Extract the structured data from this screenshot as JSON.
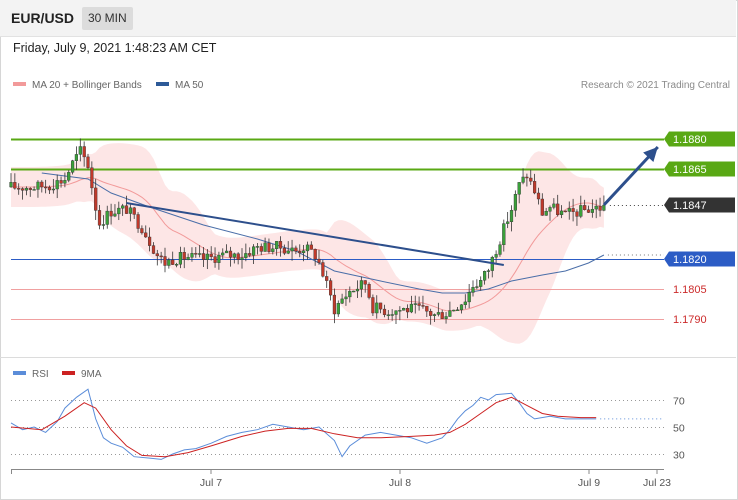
{
  "header": {
    "symbol": "EUR/USD",
    "interval": "30 MIN",
    "datetime": "Friday, July 9, 2021 1:48:23 AM CET"
  },
  "legend": {
    "ma20": "MA 20 + Bollinger Bands",
    "ma50": "MA 50",
    "credit": "Research © 2021 Trading Central"
  },
  "rsi_legend": {
    "rsi": "RSI",
    "ma": "9MA"
  },
  "colors": {
    "resistance": "#59a814",
    "support_main": "#2c5cc5",
    "support": "#cc2b2b",
    "last": "#333333",
    "bollinger": "#fde6e6",
    "ma20": "#f29a9a",
    "ma50": "#4a6ea8",
    "trend": "#2d4f8c",
    "bull": "#3aa03a",
    "bear": "#c0392b",
    "rsi": "#5b8dd9",
    "rsi_ma": "#cc2222"
  },
  "chart_data": [
    {
      "type": "candlestick",
      "title": "EUR/USD 30 MIN",
      "x_ticks": [
        "Jul 7",
        "Jul 8",
        "Jul 9",
        "Jul 23"
      ],
      "y_levels": [
        {
          "value": 1.188,
          "label": "1.1880",
          "kind": "resistance"
        },
        {
          "value": 1.1865,
          "label": "1.1865",
          "kind": "resistance"
        },
        {
          "value": 1.1847,
          "label": "1.1847",
          "kind": "last"
        },
        {
          "value": 1.182,
          "label": "1.1820",
          "kind": "pivot"
        },
        {
          "value": 1.1805,
          "label": "1.1805",
          "kind": "support"
        },
        {
          "value": 1.179,
          "label": "1.1790",
          "kind": "support"
        }
      ],
      "ylim": [
        1.177,
        1.1895
      ],
      "close_path": [
        [
          0,
          1.1856
        ],
        [
          6,
          1.1856
        ],
        [
          10,
          1.1857
        ],
        [
          14,
          1.186
        ],
        [
          16,
          1.1868
        ],
        [
          18,
          1.1874
        ],
        [
          20,
          1.1867
        ],
        [
          22,
          1.1846
        ],
        [
          23,
          1.1838
        ],
        [
          26,
          1.1844
        ],
        [
          30,
          1.1845
        ],
        [
          34,
          1.1836
        ],
        [
          36,
          1.1829
        ],
        [
          38,
          1.1822
        ],
        [
          40,
          1.1818
        ],
        [
          42,
          1.182
        ],
        [
          46,
          1.1821
        ],
        [
          50,
          1.182
        ],
        [
          56,
          1.1822
        ],
        [
          60,
          1.1822
        ],
        [
          64,
          1.1826
        ],
        [
          70,
          1.1826
        ],
        [
          74,
          1.1824
        ],
        [
          76,
          1.1826
        ],
        [
          79,
          1.1822
        ],
        [
          80,
          1.1818
        ],
        [
          82,
          1.1807
        ],
        [
          84,
          1.1795
        ],
        [
          86,
          1.18
        ],
        [
          88,
          1.1804
        ],
        [
          92,
          1.1808
        ],
        [
          94,
          1.1796
        ],
        [
          98,
          1.1794
        ],
        [
          102,
          1.1795
        ],
        [
          106,
          1.1795
        ],
        [
          110,
          1.1792
        ],
        [
          113,
          1.1793
        ],
        [
          116,
          1.1797
        ],
        [
          118,
          1.18
        ],
        [
          120,
          1.1807
        ],
        [
          122,
          1.1809
        ],
        [
          124,
          1.1815
        ],
        [
          126,
          1.1825
        ],
        [
          128,
          1.1835
        ],
        [
          130,
          1.1845
        ],
        [
          132,
          1.1857
        ],
        [
          134,
          1.1862
        ],
        [
          136,
          1.1854
        ],
        [
          138,
          1.1843
        ],
        [
          140,
          1.1846
        ],
        [
          144,
          1.1842
        ],
        [
          148,
          1.1844
        ],
        [
          150,
          1.1845
        ],
        [
          154,
          1.1846
        ]
      ],
      "ma50_path": [
        [
          8,
          1.1863
        ],
        [
          20,
          1.186
        ],
        [
          26,
          1.1853
        ],
        [
          36,
          1.1846
        ],
        [
          50,
          1.1837
        ],
        [
          64,
          1.183
        ],
        [
          74,
          1.1824
        ],
        [
          84,
          1.1814
        ],
        [
          96,
          1.1809
        ],
        [
          106,
          1.1805
        ],
        [
          112,
          1.1803
        ],
        [
          118,
          1.1803
        ],
        [
          124,
          1.1805
        ],
        [
          130,
          1.1809
        ],
        [
          138,
          1.1812
        ],
        [
          144,
          1.1814
        ],
        [
          150,
          1.1818
        ],
        [
          154,
          1.1822
        ]
      ],
      "trend_line": [
        [
          30,
          1.1848
        ],
        [
          128,
          1.1817
        ]
      ],
      "forecast_arrow": [
        [
          154,
          1.1847
        ],
        [
          168,
          1.1876
        ]
      ]
    },
    {
      "type": "line",
      "title": "RSI",
      "y_ticks": [
        70,
        50,
        30
      ],
      "ylim": [
        20,
        90
      ],
      "series": [
        {
          "name": "RSI",
          "values": [
            [
              0,
              53
            ],
            [
              3,
              48
            ],
            [
              6,
              50
            ],
            [
              9,
              46
            ],
            [
              12,
              54
            ],
            [
              14,
              64
            ],
            [
              17,
              72
            ],
            [
              20,
              78
            ],
            [
              22,
              56
            ],
            [
              24,
              42
            ],
            [
              26,
              38
            ],
            [
              29,
              35
            ],
            [
              32,
              28
            ],
            [
              36,
              27
            ],
            [
              39,
              26
            ],
            [
              42,
              30
            ],
            [
              45,
              33
            ],
            [
              48,
              34
            ],
            [
              52,
              38
            ],
            [
              56,
              43
            ],
            [
              60,
              46
            ],
            [
              64,
              48
            ],
            [
              68,
              52
            ],
            [
              72,
              50
            ],
            [
              76,
              48
            ],
            [
              80,
              50
            ],
            [
              84,
              40
            ],
            [
              86,
              28
            ],
            [
              88,
              36
            ],
            [
              92,
              44
            ],
            [
              96,
              46
            ],
            [
              100,
              44
            ],
            [
              104,
              42
            ],
            [
              108,
              38
            ],
            [
              112,
              42
            ],
            [
              114,
              48
            ],
            [
              116,
              56
            ],
            [
              118,
              62
            ],
            [
              120,
              66
            ],
            [
              122,
              72
            ],
            [
              124,
              70
            ],
            [
              126,
              74
            ],
            [
              130,
              75
            ],
            [
              132,
              68
            ],
            [
              134,
              60
            ],
            [
              136,
              56
            ],
            [
              140,
              58
            ],
            [
              144,
              56
            ],
            [
              148,
              56
            ],
            [
              152,
              56
            ]
          ]
        },
        {
          "name": "9MA",
          "values": [
            [
              0,
              50
            ],
            [
              8,
              48
            ],
            [
              14,
              58
            ],
            [
              19,
              68
            ],
            [
              22,
              64
            ],
            [
              26,
              48
            ],
            [
              30,
              36
            ],
            [
              34,
              29
            ],
            [
              40,
              28
            ],
            [
              46,
              31
            ],
            [
              52,
              36
            ],
            [
              60,
              43
            ],
            [
              66,
              47
            ],
            [
              72,
              49
            ],
            [
              78,
              49
            ],
            [
              84,
              45
            ],
            [
              90,
              42
            ],
            [
              96,
              42
            ],
            [
              104,
              43
            ],
            [
              110,
              44
            ],
            [
              114,
              46
            ],
            [
              118,
              52
            ],
            [
              122,
              60
            ],
            [
              126,
              68
            ],
            [
              130,
              72
            ],
            [
              134,
              66
            ],
            [
              138,
              60
            ],
            [
              142,
              58
            ],
            [
              148,
              57
            ],
            [
              152,
              57
            ]
          ]
        }
      ]
    }
  ]
}
